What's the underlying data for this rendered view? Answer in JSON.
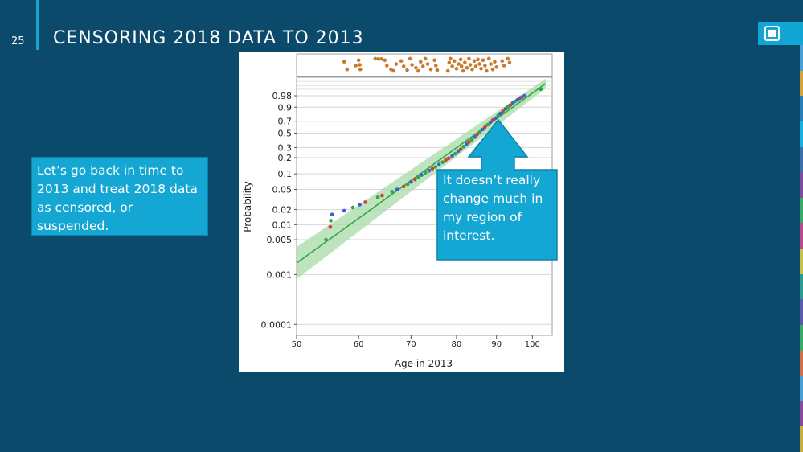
{
  "slide": {
    "number": "25",
    "title": "CENSORING 2018 DATA TO 2013"
  },
  "callouts": {
    "left_text": "Let’s go back in time to 2013 and treat 2018 data as censored, or suspended.",
    "right_text": "It doesn’t really change much in my region of interest."
  },
  "colors": {
    "background": "#0b4a6b",
    "accent": "#14a7d3",
    "fit_line": "#2ea843",
    "band": "#a7dba6",
    "censored_points": "#c97a2f"
  },
  "icons": {
    "logo": "sandia-thunderbird-logo",
    "arrow": "up-arrow-callout"
  },
  "chart_data": {
    "type": "scatter",
    "scale": "probability",
    "xlabel": "Age in 2013",
    "ylabel": "Probability",
    "xlim": [
      50,
      106
    ],
    "x_ticks": [
      "50",
      "60",
      "70",
      "80",
      "90",
      "100"
    ],
    "y_ticks": [
      "0.98",
      "0.9",
      "0.7",
      "0.5",
      "0.3",
      "0.2",
      "0.1",
      "0.05",
      "0.02",
      "0.01",
      "0.005",
      "0.001",
      "0.0001"
    ],
    "fit_line": {
      "x": [
        50,
        104
      ],
      "y": [
        0.0017,
        0.999
      ]
    },
    "failure_points": [
      {
        "x": 54.5,
        "y": 0.005,
        "c": "green"
      },
      {
        "x": 55.2,
        "y": 0.009,
        "c": "red"
      },
      {
        "x": 55.3,
        "y": 0.012,
        "c": "green"
      },
      {
        "x": 55.5,
        "y": 0.016,
        "c": "blue"
      },
      {
        "x": 57.5,
        "y": 0.019,
        "c": "blue"
      },
      {
        "x": 59,
        "y": 0.022,
        "c": "green"
      },
      {
        "x": 60.2,
        "y": 0.025,
        "c": "blue"
      },
      {
        "x": 61.2,
        "y": 0.028,
        "c": "red"
      },
      {
        "x": 63.5,
        "y": 0.035,
        "c": "green"
      },
      {
        "x": 64.3,
        "y": 0.038,
        "c": "red"
      },
      {
        "x": 66.2,
        "y": 0.045,
        "c": "green"
      },
      {
        "x": 67.2,
        "y": 0.05,
        "c": "blue"
      },
      {
        "x": 68.5,
        "y": 0.057,
        "c": "red"
      },
      {
        "x": 69.3,
        "y": 0.063,
        "c": "green"
      },
      {
        "x": 70,
        "y": 0.07,
        "c": "blue"
      },
      {
        "x": 70.8,
        "y": 0.078,
        "c": "red"
      },
      {
        "x": 71.5,
        "y": 0.086,
        "c": "green"
      },
      {
        "x": 72.2,
        "y": 0.095,
        "c": "blue"
      },
      {
        "x": 73,
        "y": 0.105,
        "c": "green"
      },
      {
        "x": 73.8,
        "y": 0.115,
        "c": "blue"
      },
      {
        "x": 74.5,
        "y": 0.125,
        "c": "red"
      },
      {
        "x": 75.2,
        "y": 0.135,
        "c": "green"
      },
      {
        "x": 76,
        "y": 0.15,
        "c": "blue"
      },
      {
        "x": 76.8,
        "y": 0.165,
        "c": "green"
      },
      {
        "x": 77.5,
        "y": 0.18,
        "c": "red"
      },
      {
        "x": 78.2,
        "y": 0.195,
        "c": "red"
      },
      {
        "x": 79,
        "y": 0.215,
        "c": "blue"
      },
      {
        "x": 79.7,
        "y": 0.235,
        "c": "green"
      },
      {
        "x": 80.4,
        "y": 0.26,
        "c": "blue"
      },
      {
        "x": 81,
        "y": 0.28,
        "c": "red"
      },
      {
        "x": 81.7,
        "y": 0.31,
        "c": "green"
      },
      {
        "x": 82.4,
        "y": 0.34,
        "c": "blue"
      },
      {
        "x": 83,
        "y": 0.37,
        "c": "red"
      },
      {
        "x": 83.7,
        "y": 0.4,
        "c": "green"
      },
      {
        "x": 84.4,
        "y": 0.44,
        "c": "blue"
      },
      {
        "x": 85,
        "y": 0.48,
        "c": "red"
      },
      {
        "x": 85.7,
        "y": 0.52,
        "c": "green"
      },
      {
        "x": 86.4,
        "y": 0.56,
        "c": "blue"
      },
      {
        "x": 87,
        "y": 0.6,
        "c": "red"
      },
      {
        "x": 87.7,
        "y": 0.64,
        "c": "green"
      },
      {
        "x": 88.4,
        "y": 0.68,
        "c": "blue"
      },
      {
        "x": 89,
        "y": 0.72,
        "c": "red"
      },
      {
        "x": 89.7,
        "y": 0.75,
        "c": "blue"
      },
      {
        "x": 90.4,
        "y": 0.79,
        "c": "green"
      },
      {
        "x": 91,
        "y": 0.82,
        "c": "blue"
      },
      {
        "x": 91.7,
        "y": 0.85,
        "c": "red"
      },
      {
        "x": 92.4,
        "y": 0.88,
        "c": "blue"
      },
      {
        "x": 93,
        "y": 0.9,
        "c": "green"
      },
      {
        "x": 93.7,
        "y": 0.92,
        "c": "red"
      },
      {
        "x": 94.4,
        "y": 0.94,
        "c": "blue"
      },
      {
        "x": 95,
        "y": 0.95,
        "c": "green"
      },
      {
        "x": 95.7,
        "y": 0.96,
        "c": "blue"
      },
      {
        "x": 96.4,
        "y": 0.97,
        "c": "blue"
      },
      {
        "x": 97,
        "y": 0.975,
        "c": "red"
      },
      {
        "x": 97.7,
        "y": 0.98,
        "c": "blue"
      },
      {
        "x": 102.5,
        "y": 0.995,
        "c": "green"
      }
    ],
    "censored_points": [
      {
        "x": 57.5,
        "r": 0.3
      },
      {
        "x": 58,
        "r": 0.8
      },
      {
        "x": 59.5,
        "r": 0.55
      },
      {
        "x": 60,
        "r": 0.2
      },
      {
        "x": 60.2,
        "r": 0.5
      },
      {
        "x": 60.3,
        "r": 0.8
      },
      {
        "x": 63,
        "r": 0.1
      },
      {
        "x": 63.6,
        "r": 0.12
      },
      {
        "x": 64.2,
        "r": 0.12
      },
      {
        "x": 64.8,
        "r": 0.2
      },
      {
        "x": 65.2,
        "r": 0.55
      },
      {
        "x": 66,
        "r": 0.8
      },
      {
        "x": 66.5,
        "r": 0.9
      },
      {
        "x": 67,
        "r": 0.45
      },
      {
        "x": 68,
        "r": 0.25
      },
      {
        "x": 68.5,
        "r": 0.6
      },
      {
        "x": 69.2,
        "r": 0.85
      },
      {
        "x": 69.8,
        "r": 0.1
      },
      {
        "x": 70.2,
        "r": 0.5
      },
      {
        "x": 71,
        "r": 0.7
      },
      {
        "x": 71.5,
        "r": 0.9
      },
      {
        "x": 72,
        "r": 0.3
      },
      {
        "x": 72.5,
        "r": 0.6
      },
      {
        "x": 73,
        "r": 0.1
      },
      {
        "x": 73.5,
        "r": 0.45
      },
      {
        "x": 74.2,
        "r": 0.8
      },
      {
        "x": 75,
        "r": 0.2
      },
      {
        "x": 75.3,
        "r": 0.55
      },
      {
        "x": 75.6,
        "r": 0.85
      },
      {
        "x": 78,
        "r": 0.9
      },
      {
        "x": 78.3,
        "r": 0.35
      },
      {
        "x": 78.6,
        "r": 0.1
      },
      {
        "x": 79,
        "r": 0.6
      },
      {
        "x": 79.5,
        "r": 0.25
      },
      {
        "x": 80,
        "r": 0.75
      },
      {
        "x": 80.5,
        "r": 0.45
      },
      {
        "x": 81,
        "r": 0.15
      },
      {
        "x": 81.2,
        "r": 0.6
      },
      {
        "x": 81.6,
        "r": 0.9
      },
      {
        "x": 82,
        "r": 0.35
      },
      {
        "x": 82.5,
        "r": 0.7
      },
      {
        "x": 83,
        "r": 0.1
      },
      {
        "x": 83.3,
        "r": 0.5
      },
      {
        "x": 83.8,
        "r": 0.8
      },
      {
        "x": 84.3,
        "r": 0.25
      },
      {
        "x": 84.7,
        "r": 0.6
      },
      {
        "x": 85.2,
        "r": 0.15
      },
      {
        "x": 85.6,
        "r": 0.45
      },
      {
        "x": 86,
        "r": 0.75
      },
      {
        "x": 86.5,
        "r": 0.2
      },
      {
        "x": 87,
        "r": 0.55
      },
      {
        "x": 87.4,
        "r": 0.9
      },
      {
        "x": 88,
        "r": 0.1
      },
      {
        "x": 88.5,
        "r": 0.45
      },
      {
        "x": 89,
        "r": 0.8
      },
      {
        "x": 89.5,
        "r": 0.3
      },
      {
        "x": 90,
        "r": 0.65
      },
      {
        "x": 91.5,
        "r": 0.25
      },
      {
        "x": 92,
        "r": 0.55
      },
      {
        "x": 93,
        "r": 0.1
      },
      {
        "x": 93.5,
        "r": 0.35
      }
    ]
  },
  "right_strip_colors": [
    "#4a9fd6",
    "#d6a33a",
    "#2a7fb8",
    "#19b0e0",
    "#3c6fa8",
    "#7c4d9b",
    "#3aa866",
    "#b84a8a",
    "#c4c24a",
    "#2d9a8f",
    "#5a5aa8",
    "#3aa866",
    "#d0704a",
    "#4a9fd6",
    "#8a4a9b",
    "#c8b040"
  ]
}
